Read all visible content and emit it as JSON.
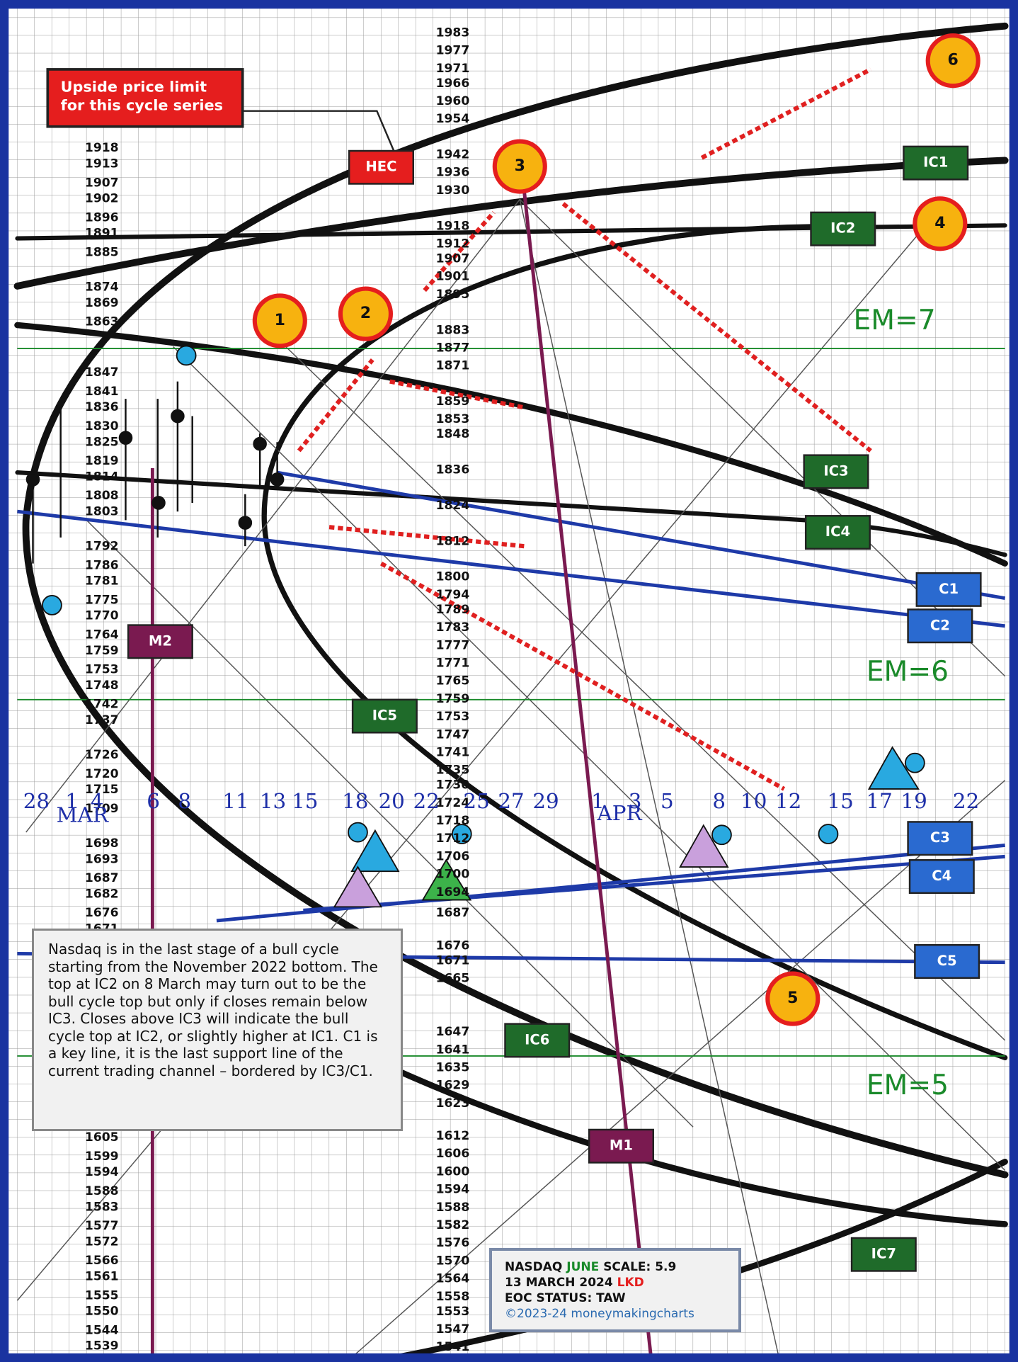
{
  "callout": {
    "lines": [
      "Upside price limit",
      "for this cycle series"
    ]
  },
  "left_scale": [
    "1918",
    "1913",
    "1907",
    "1902",
    "1896",
    "1891",
    "1885",
    "1874",
    "1869",
    "1863",
    "1847",
    "1841",
    "1836",
    "1830",
    "1825",
    "1819",
    "1814",
    "1808",
    "1803",
    "1792",
    "1786",
    "1781",
    "1775",
    "1770",
    "1764",
    "1759",
    "1753",
    "1748",
    "1742",
    "1737",
    "1726",
    "1720",
    "1715",
    "1709",
    "1698",
    "1693",
    "1687",
    "1682",
    "1676",
    "1671",
    "1605",
    "1599",
    "1594",
    "1588",
    "1583",
    "1577",
    "1572",
    "1566",
    "1561",
    "1555",
    "1550",
    "1544",
    "1539"
  ],
  "center_scale": [
    "1983",
    "1977",
    "1971",
    "1966",
    "1960",
    "1954",
    "1942",
    "1936",
    "1930",
    "1918",
    "1912",
    "1907",
    "1901",
    "1895",
    "1883",
    "1877",
    "1871",
    "1859",
    "1853",
    "1848",
    "1836",
    "1824",
    "1812",
    "1800",
    "1794",
    "1789",
    "1783",
    "1777",
    "1771",
    "1765",
    "1759",
    "1753",
    "1747",
    "1741",
    "1735",
    "1730",
    "1724",
    "1718",
    "1712",
    "1706",
    "1700",
    "1694",
    "1687",
    "1676",
    "1671",
    "1665",
    "1647",
    "1641",
    "1635",
    "1629",
    "1623",
    "1612",
    "1606",
    "1600",
    "1594",
    "1588",
    "1582",
    "1576",
    "1570",
    "1564",
    "1558",
    "1553",
    "1547",
    "1541"
  ],
  "dates": [
    "28",
    "1",
    "4",
    "6",
    "8",
    "11",
    "13",
    "15",
    "18",
    "20",
    "22",
    "25",
    "27",
    "29",
    "1",
    "3",
    "5",
    "8",
    "10",
    "12",
    "15",
    "17",
    "19",
    "22"
  ],
  "months": [
    "MAR",
    "APR"
  ],
  "boxes": [
    "HEC",
    "IC1",
    "IC2",
    "IC3",
    "IC4",
    "IC5",
    "IC6",
    "IC7",
    "C1",
    "C2",
    "C3",
    "C4",
    "C5",
    "M1",
    "M2"
  ],
  "circles": [
    "1",
    "2",
    "3",
    "4",
    "5",
    "6"
  ],
  "em_labels": [
    "EM=7",
    "EM=6",
    "EM=5"
  ],
  "note": "Nasdaq is in the last stage of a bull cycle starting from the November 2022 bottom. The top at IC2 on 8 March may turn out to be the bull cycle top but only if closes remain below IC3. Closes above IC3 will indicate the bull cycle top at IC2, or slightly higher at IC1. C1 is a key line, it is the last support line of the current trading channel – bordered by IC3/C1.",
  "footer": {
    "name": "NASDAQ",
    "contract": "JUNE",
    "scale": "SCALE:  5.9",
    "date": "13 MARCH 2024",
    "date_tag": "LKD",
    "status": "EOC STATUS: TAW",
    "copyright": "©2023-24 moneymakingcharts"
  }
}
